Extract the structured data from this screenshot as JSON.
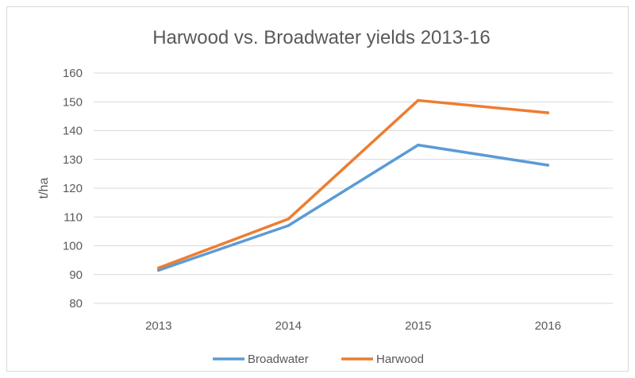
{
  "chart_data": {
    "type": "line",
    "title": "Harwood vs. Broadwater yields 2013-16",
    "xlabel": "",
    "ylabel": "t/ha",
    "categories": [
      "2013",
      "2014",
      "2015",
      "2016"
    ],
    "ylim": [
      80,
      160
    ],
    "yticks": [
      80,
      90,
      100,
      110,
      120,
      130,
      140,
      150,
      160
    ],
    "grid": true,
    "legend_position": "bottom",
    "series": [
      {
        "name": "Broadwater",
        "color": "#5b9bd5",
        "values": [
          91.5,
          107,
          135,
          128
        ]
      },
      {
        "name": "Harwood",
        "color": "#ed7d31",
        "values": [
          92.3,
          109.3,
          150.5,
          146.2
        ]
      }
    ]
  }
}
